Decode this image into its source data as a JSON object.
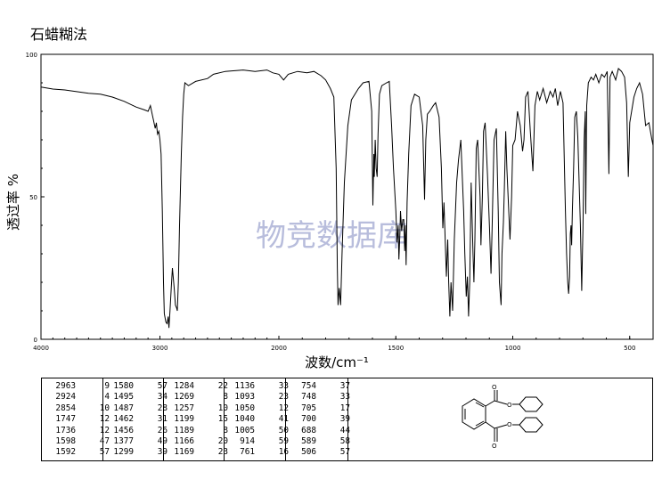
{
  "page": {
    "title": "石蜡糊法"
  },
  "watermark": "物竞数据库",
  "chart_data": {
    "type": "line",
    "title": "石蜡糊法",
    "xlabel": "波数/cm⁻¹",
    "ylabel": "透过率 %",
    "xlim": [
      4000,
      400
    ],
    "ylim": [
      0,
      100
    ],
    "x_ticks": [
      "4000",
      "3000",
      "2000",
      "1500",
      "1000",
      "500"
    ],
    "x_tick_values": [
      4000,
      3000,
      2000,
      1500,
      1000,
      500
    ],
    "y_ticks": [
      "0",
      "50",
      "100"
    ],
    "y_tick_values": [
      0,
      50,
      100
    ],
    "grid": false,
    "line_color": "#000000",
    "series": [
      {
        "points": [
          [
            4000,
            88.5
          ],
          [
            3900,
            87.8
          ],
          [
            3800,
            87.5
          ],
          [
            3700,
            86.9
          ],
          [
            3600,
            86.3
          ],
          [
            3500,
            86
          ],
          [
            3400,
            85
          ],
          [
            3300,
            83.5
          ],
          [
            3200,
            81.5
          ],
          [
            3130,
            80.5
          ],
          [
            3100,
            80
          ],
          [
            3080,
            82
          ],
          [
            3065,
            79
          ],
          [
            3055,
            77
          ],
          [
            3040,
            74
          ],
          [
            3030,
            76
          ],
          [
            3020,
            72
          ],
          [
            3010,
            73
          ],
          [
            3000,
            70
          ],
          [
            2990,
            65
          ],
          [
            2980,
            45
          ],
          [
            2970,
            20
          ],
          [
            2963,
            9
          ],
          [
            2950,
            6
          ],
          [
            2940,
            5.5
          ],
          [
            2930,
            8
          ],
          [
            2924,
            4
          ],
          [
            2915,
            10
          ],
          [
            2905,
            18
          ],
          [
            2895,
            25
          ],
          [
            2880,
            18
          ],
          [
            2870,
            12
          ],
          [
            2860,
            11
          ],
          [
            2854,
            10
          ],
          [
            2845,
            20
          ],
          [
            2835,
            40
          ],
          [
            2820,
            65
          ],
          [
            2810,
            78
          ],
          [
            2800,
            86
          ],
          [
            2790,
            90
          ],
          [
            2760,
            89
          ],
          [
            2700,
            90.5
          ],
          [
            2600,
            91.5
          ],
          [
            2550,
            93
          ],
          [
            2450,
            94
          ],
          [
            2300,
            94.5
          ],
          [
            2200,
            94
          ],
          [
            2100,
            94.5
          ],
          [
            2050,
            93.5
          ],
          [
            2000,
            93
          ],
          [
            1980,
            91
          ],
          [
            1960,
            93
          ],
          [
            1920,
            94
          ],
          [
            1880,
            93.5
          ],
          [
            1850,
            94
          ],
          [
            1820,
            92.5
          ],
          [
            1800,
            91
          ],
          [
            1780,
            88
          ],
          [
            1765,
            85
          ],
          [
            1755,
            60
          ],
          [
            1750,
            25
          ],
          [
            1747,
            12
          ],
          [
            1742,
            18
          ],
          [
            1736,
            12
          ],
          [
            1730,
            30
          ],
          [
            1720,
            55
          ],
          [
            1705,
            75
          ],
          [
            1690,
            84
          ],
          [
            1660,
            88
          ],
          [
            1640,
            90
          ],
          [
            1615,
            90.5
          ],
          [
            1603,
            80
          ],
          [
            1598,
            47
          ],
          [
            1594,
            65
          ],
          [
            1592,
            57
          ],
          [
            1588,
            70
          ],
          [
            1584,
            60
          ],
          [
            1580,
            57
          ],
          [
            1576,
            72
          ],
          [
            1570,
            86
          ],
          [
            1560,
            89
          ],
          [
            1540,
            90
          ],
          [
            1528,
            90.5
          ],
          [
            1518,
            75
          ],
          [
            1510,
            60
          ],
          [
            1500,
            45
          ],
          [
            1495,
            34
          ],
          [
            1490,
            40
          ],
          [
            1487,
            28
          ],
          [
            1483,
            36
          ],
          [
            1480,
            45
          ],
          [
            1475,
            38
          ],
          [
            1470,
            42
          ],
          [
            1466,
            42
          ],
          [
            1462,
            31
          ],
          [
            1459,
            40
          ],
          [
            1456,
            26
          ],
          [
            1452,
            48
          ],
          [
            1445,
            65
          ],
          [
            1435,
            82
          ],
          [
            1420,
            86
          ],
          [
            1400,
            85
          ],
          [
            1385,
            75
          ],
          [
            1377,
            49
          ],
          [
            1372,
            70
          ],
          [
            1365,
            79
          ],
          [
            1355,
            80
          ],
          [
            1340,
            82
          ],
          [
            1330,
            83
          ],
          [
            1315,
            78
          ],
          [
            1305,
            60
          ],
          [
            1299,
            39
          ],
          [
            1294,
            48
          ],
          [
            1284,
            22
          ],
          [
            1278,
            35
          ],
          [
            1274,
            20
          ],
          [
            1269,
            8
          ],
          [
            1264,
            20
          ],
          [
            1257,
            10
          ],
          [
            1250,
            35
          ],
          [
            1240,
            55
          ],
          [
            1232,
            63
          ],
          [
            1222,
            70
          ],
          [
            1210,
            45
          ],
          [
            1205,
            30
          ],
          [
            1199,
            15
          ],
          [
            1194,
            22
          ],
          [
            1189,
            8
          ],
          [
            1184,
            20
          ],
          [
            1178,
            55
          ],
          [
            1170,
            30
          ],
          [
            1166,
            20
          ],
          [
            1162,
            35
          ],
          [
            1156,
            67
          ],
          [
            1150,
            70
          ],
          [
            1140,
            50
          ],
          [
            1136,
            33
          ],
          [
            1130,
            50
          ],
          [
            1125,
            73
          ],
          [
            1118,
            76
          ],
          [
            1108,
            58
          ],
          [
            1100,
            40
          ],
          [
            1093,
            23
          ],
          [
            1088,
            40
          ],
          [
            1080,
            70
          ],
          [
            1070,
            74
          ],
          [
            1062,
            45
          ],
          [
            1057,
            20
          ],
          [
            1050,
            12
          ],
          [
            1046,
            30
          ],
          [
            1040,
            41
          ],
          [
            1036,
            52
          ],
          [
            1030,
            73
          ],
          [
            1025,
            60
          ],
          [
            1012,
            35
          ],
          [
            1005,
            50
          ],
          [
            1000,
            68
          ],
          [
            990,
            70
          ],
          [
            980,
            80
          ],
          [
            968,
            75
          ],
          [
            958,
            66
          ],
          [
            952,
            70
          ],
          [
            945,
            85
          ],
          [
            935,
            87
          ],
          [
            925,
            73
          ],
          [
            914,
            59
          ],
          [
            905,
            82
          ],
          [
            895,
            87
          ],
          [
            885,
            84
          ],
          [
            870,
            88
          ],
          [
            855,
            83
          ],
          [
            840,
            87
          ],
          [
            828,
            85
          ],
          [
            818,
            88
          ],
          [
            808,
            82
          ],
          [
            796,
            87
          ],
          [
            785,
            83
          ],
          [
            775,
            45
          ],
          [
            770,
            30
          ],
          [
            765,
            20
          ],
          [
            761,
            16
          ],
          [
            757,
            22
          ],
          [
            754,
            37
          ],
          [
            751,
            40
          ],
          [
            748,
            33
          ],
          [
            745,
            45
          ],
          [
            740,
            60
          ],
          [
            735,
            78
          ],
          [
            728,
            80
          ],
          [
            722,
            71
          ],
          [
            716,
            55
          ],
          [
            711,
            40
          ],
          [
            705,
            17
          ],
          [
            702,
            30
          ],
          [
            700,
            39
          ],
          [
            695,
            70
          ],
          [
            690,
            80
          ],
          [
            688,
            44
          ],
          [
            684,
            82
          ],
          [
            677,
            90
          ],
          [
            665,
            92
          ],
          [
            655,
            91
          ],
          [
            645,
            93
          ],
          [
            632,
            90
          ],
          [
            620,
            93
          ],
          [
            608,
            92
          ],
          [
            596,
            94
          ],
          [
            589,
            58
          ],
          [
            584,
            92
          ],
          [
            575,
            94
          ],
          [
            560,
            91
          ],
          [
            548,
            95
          ],
          [
            535,
            94
          ],
          [
            522,
            92
          ],
          [
            513,
            83
          ],
          [
            506,
            57
          ],
          [
            500,
            76
          ],
          [
            492,
            80
          ],
          [
            482,
            85
          ],
          [
            470,
            88
          ],
          [
            458,
            90
          ],
          [
            445,
            86
          ],
          [
            432,
            75
          ],
          [
            418,
            76
          ],
          [
            405,
            70
          ],
          [
            400,
            68
          ]
        ]
      }
    ],
    "peak_table": [
      [
        [
          "2963",
          "9"
        ],
        [
          "2924",
          "4"
        ],
        [
          "2854",
          "10"
        ],
        [
          "1747",
          "12"
        ],
        [
          "1736",
          "12"
        ],
        [
          "1598",
          "47"
        ],
        [
          "1592",
          "57"
        ]
      ],
      [
        [
          "1580",
          "57"
        ],
        [
          "1495",
          "34"
        ],
        [
          "1487",
          "28"
        ],
        [
          "1462",
          "31"
        ],
        [
          "1456",
          "26"
        ],
        [
          "1377",
          "49"
        ],
        [
          "1299",
          "39"
        ]
      ],
      [
        [
          "1284",
          "22"
        ],
        [
          "1269",
          "8"
        ],
        [
          "1257",
          "10"
        ],
        [
          "1199",
          "15"
        ],
        [
          "1189",
          "8"
        ],
        [
          "1166",
          "20"
        ],
        [
          "1169",
          "23"
        ]
      ],
      [
        [
          "1136",
          "33"
        ],
        [
          "1093",
          "23"
        ],
        [
          "1050",
          "12"
        ],
        [
          "1040",
          "41"
        ],
        [
          "1005",
          "50"
        ],
        [
          "914",
          "59"
        ],
        [
          "761",
          "16"
        ]
      ],
      [
        [
          "754",
          "37"
        ],
        [
          "748",
          "33"
        ],
        [
          "705",
          "17"
        ],
        [
          "700",
          "39"
        ],
        [
          "688",
          "44"
        ],
        [
          "589",
          "58"
        ],
        [
          "506",
          "57"
        ]
      ]
    ],
    "structure_labels": {
      "oxygen": "O"
    }
  }
}
